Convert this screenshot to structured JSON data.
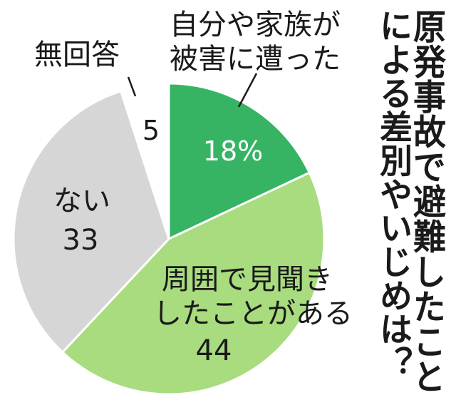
{
  "chart_data": {
    "type": "pie",
    "title": "原発事故で避難したことによる差別やいじめは？",
    "slices": [
      {
        "label": "自分や家族が被害に遭った",
        "value": 18,
        "value_text": "18%",
        "color": "#36b464"
      },
      {
        "label": "周囲で見聞きしたことがある",
        "value": 44,
        "value_text": "44",
        "color": "#a8dc7e"
      },
      {
        "label": "ない",
        "value": 33,
        "value_text": "33",
        "color": "#d6d6d6"
      },
      {
        "label": "無回答",
        "value": 5,
        "value_text": "5",
        "color": "#ffffff"
      }
    ]
  },
  "labels": {
    "self_line1": "自分や家族が",
    "self_line2": "被害に遭った",
    "heard_line1": "周囲で見聞き",
    "heard_line2": "したことがある",
    "none": "ない",
    "noanswer": "無回答",
    "title_col1": "原発事故で避難したこと",
    "title_col2": "による差別やいじめは？"
  }
}
